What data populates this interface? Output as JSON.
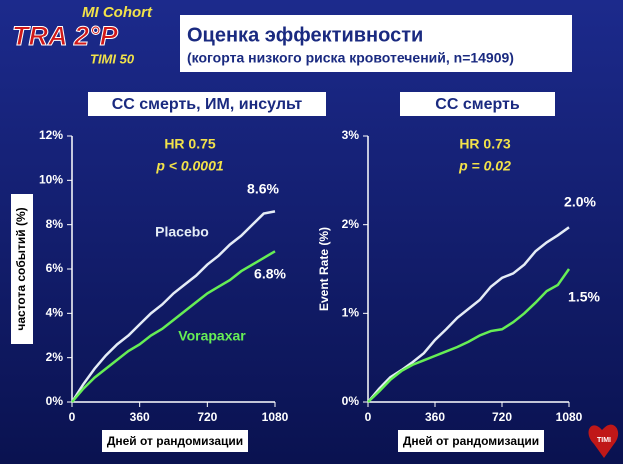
{
  "header": {
    "cohort": "MI Cohort",
    "logo": "TRA 2°P",
    "study": "TIMI 50",
    "title": "Оценка эффективности",
    "subtitle": "(когорта низкого риска кровотечений, n=14909)",
    "logo_mark": "TIMI"
  },
  "chart_data": [
    {
      "type": "line",
      "title": "CC смерть, ИМ, инсульт",
      "y_label": "частота событий (%)",
      "x_label": "Дней от рандомизации",
      "annotations": [
        "HR 0.75",
        "p < 0.0001",
        "8.6%",
        "6.8%"
      ],
      "x": [
        0,
        60,
        120,
        180,
        240,
        300,
        360,
        420,
        480,
        540,
        600,
        660,
        720,
        780,
        840,
        900,
        960,
        1020,
        1080
      ],
      "xlim": [
        0,
        1080
      ],
      "xticks": [
        0,
        360,
        720,
        1080
      ],
      "ylim": [
        0,
        12
      ],
      "yticks": [
        {
          "value": 0,
          "label": "0%"
        },
        {
          "value": 2,
          "label": "2%"
        },
        {
          "value": 4,
          "label": "4%"
        },
        {
          "value": 6,
          "label": "6%"
        },
        {
          "value": 8,
          "label": "8%"
        },
        {
          "value": 10,
          "label": "10%"
        },
        {
          "value": 12,
          "label": "12%"
        }
      ],
      "series": [
        {
          "name": "Placebo",
          "color": "#e4ecf6",
          "values": [
            0,
            0.8,
            1.5,
            2.1,
            2.6,
            3.0,
            3.5,
            4.0,
            4.4,
            4.9,
            5.3,
            5.7,
            6.2,
            6.6,
            7.1,
            7.5,
            8.0,
            8.5,
            8.6
          ]
        },
        {
          "name": "Vorapaxar",
          "color": "#66ee55",
          "values": [
            0,
            0.6,
            1.1,
            1.5,
            1.9,
            2.3,
            2.6,
            3.0,
            3.3,
            3.7,
            4.1,
            4.5,
            4.9,
            5.2,
            5.5,
            5.9,
            6.2,
            6.5,
            6.8
          ]
        }
      ]
    },
    {
      "type": "line",
      "title": "CC смерть",
      "y_label": "Event Rate (%)",
      "x_label": "Дней от рандомизации",
      "annotations": [
        "HR 0.73",
        "p = 0.02",
        "2.0%",
        "1.5%"
      ],
      "x": [
        0,
        60,
        120,
        180,
        240,
        300,
        360,
        420,
        480,
        540,
        600,
        660,
        720,
        780,
        840,
        900,
        960,
        1020,
        1080
      ],
      "xlim": [
        0,
        1080
      ],
      "xticks": [
        0,
        360,
        720,
        1080
      ],
      "ylim": [
        0,
        3
      ],
      "yticks": [
        {
          "value": 0,
          "label": "0%"
        },
        {
          "value": 1,
          "label": "1%"
        },
        {
          "value": 2,
          "label": "2%"
        },
        {
          "value": 3,
          "label": "3%"
        }
      ],
      "series": [
        {
          "color": "#e4ecf6",
          "values": [
            0,
            0.15,
            0.28,
            0.36,
            0.45,
            0.55,
            0.7,
            0.82,
            0.95,
            1.05,
            1.15,
            1.3,
            1.4,
            1.45,
            1.55,
            1.7,
            1.8,
            1.88,
            1.97
          ]
        },
        {
          "color": "#66ee55",
          "values": [
            0,
            0.12,
            0.25,
            0.35,
            0.42,
            0.47,
            0.52,
            0.57,
            0.62,
            0.68,
            0.75,
            0.8,
            0.82,
            0.9,
            1.0,
            1.12,
            1.25,
            1.32,
            1.5
          ]
        }
      ]
    }
  ]
}
